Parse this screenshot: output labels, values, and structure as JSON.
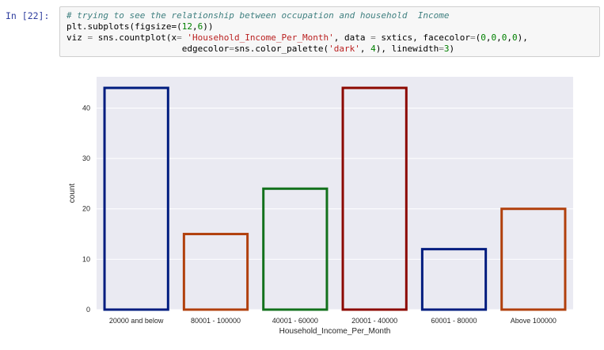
{
  "cell": {
    "prompt": "In [22]:",
    "code_lines": [
      [
        {
          "t": "# trying to see the relationship between occupation and household  Income",
          "c": "cm"
        }
      ],
      [
        {
          "t": "plt.subplots(figsize=(",
          "c": ""
        },
        {
          "t": "12",
          "c": "nu"
        },
        {
          "t": ",",
          "c": ""
        },
        {
          "t": "6",
          "c": "nu"
        },
        {
          "t": "))",
          "c": ""
        }
      ],
      [
        {
          "t": "viz ",
          "c": ""
        },
        {
          "t": "=",
          "c": "op"
        },
        {
          "t": " sns.countplot(x",
          "c": ""
        },
        {
          "t": "=",
          "c": "op"
        },
        {
          "t": " ",
          "c": ""
        },
        {
          "t": "'Household_Income_Per_Month'",
          "c": "st"
        },
        {
          "t": ", data ",
          "c": ""
        },
        {
          "t": "=",
          "c": "op"
        },
        {
          "t": " sxtics, facecolor",
          "c": ""
        },
        {
          "t": "=",
          "c": "op"
        },
        {
          "t": "(",
          "c": ""
        },
        {
          "t": "0",
          "c": "nu"
        },
        {
          "t": ",",
          "c": ""
        },
        {
          "t": "0",
          "c": "nu"
        },
        {
          "t": ",",
          "c": ""
        },
        {
          "t": "0",
          "c": "nu"
        },
        {
          "t": ",",
          "c": ""
        },
        {
          "t": "0",
          "c": "nu"
        },
        {
          "t": "),",
          "c": ""
        }
      ],
      [
        {
          "t": "                      edgecolor",
          "c": ""
        },
        {
          "t": "=",
          "c": "op"
        },
        {
          "t": "sns.color_palette(",
          "c": ""
        },
        {
          "t": "'dark'",
          "c": "st"
        },
        {
          "t": ", ",
          "c": ""
        },
        {
          "t": "4",
          "c": "nu"
        },
        {
          "t": "), linewidth",
          "c": ""
        },
        {
          "t": "=",
          "c": "op"
        },
        {
          "t": "3",
          "c": "nu"
        },
        {
          "t": ")",
          "c": ""
        }
      ]
    ]
  },
  "chart_data": {
    "type": "bar",
    "categories": [
      "20000 and below",
      "80001 - 100000",
      "40001 - 60000",
      "20001 - 40000",
      "60001 - 80000",
      "Above 100000"
    ],
    "values": [
      44,
      15,
      24,
      44,
      12,
      20
    ],
    "edge_colors": [
      "#001c7f",
      "#b1400d",
      "#12711c",
      "#8c0800",
      "#001c7f",
      "#b1400d"
    ],
    "xlabel": "Household_Income_Per_Month",
    "ylabel": "count",
    "ylim": [
      0,
      46.2
    ],
    "yticks": [
      0,
      10,
      20,
      30,
      40
    ],
    "grid": true,
    "background": "#eaeaf2"
  }
}
